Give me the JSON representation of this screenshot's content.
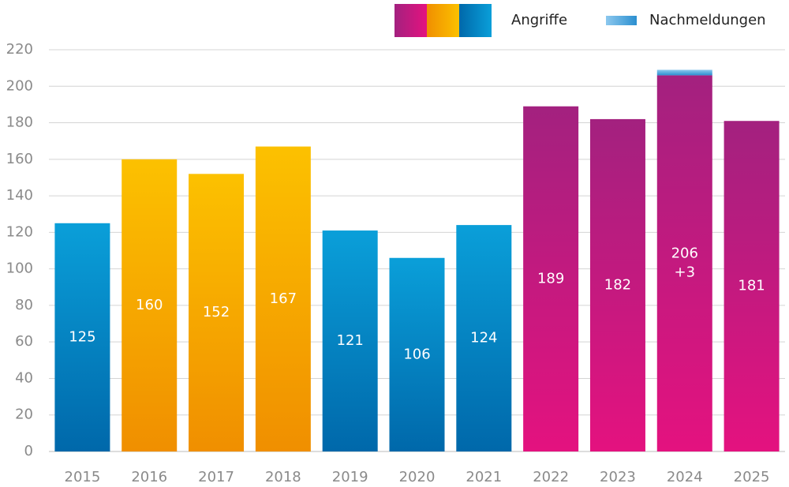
{
  "chart_data": {
    "type": "stacked-bar",
    "categories": [
      "2015",
      "2016",
      "2017",
      "2018",
      "2019",
      "2020",
      "2021",
      "2022",
      "2023",
      "2024",
      "2025"
    ],
    "series": [
      {
        "name": "Angriffe",
        "values": [
          125,
          160,
          152,
          167,
          121,
          106,
          124,
          189,
          182,
          206,
          181
        ],
        "colors": [
          [
            "#0a9fd9",
            "#0068aa"
          ],
          [
            "#fcc100",
            "#f08f00"
          ],
          [
            "#fcc100",
            "#f08f00"
          ],
          [
            "#fcc100",
            "#f08f00"
          ],
          [
            "#0a9fd9",
            "#0068aa"
          ],
          [
            "#0a9fd9",
            "#0068aa"
          ],
          [
            "#0a9fd9",
            "#0068aa"
          ],
          [
            "#a3217f",
            "#e4127f"
          ],
          [
            "#a3217f",
            "#e4127f"
          ],
          [
            "#a3217f",
            "#e4127f"
          ],
          [
            "#a3217f",
            "#e4127f"
          ]
        ],
        "legend_colors": [
          [
            "#a3217f",
            "#e4127f"
          ],
          [
            "#f08f00",
            "#fcc100"
          ],
          [
            "#0068aa",
            "#0a9fd9"
          ]
        ]
      },
      {
        "name": "Nachmeldungen",
        "values": [
          null,
          null,
          null,
          null,
          null,
          null,
          null,
          null,
          null,
          3,
          null
        ],
        "value_labels": [
          null,
          null,
          null,
          null,
          null,
          null,
          null,
          null,
          null,
          "+3",
          null
        ],
        "colors": [
          [
            "#8cc8ee",
            "#2b8fd0"
          ]
        ]
      }
    ],
    "ylim": [
      0,
      220
    ],
    "yticks": [
      0,
      20,
      40,
      60,
      80,
      100,
      120,
      140,
      160,
      180,
      200,
      220
    ],
    "grid": true
  }
}
